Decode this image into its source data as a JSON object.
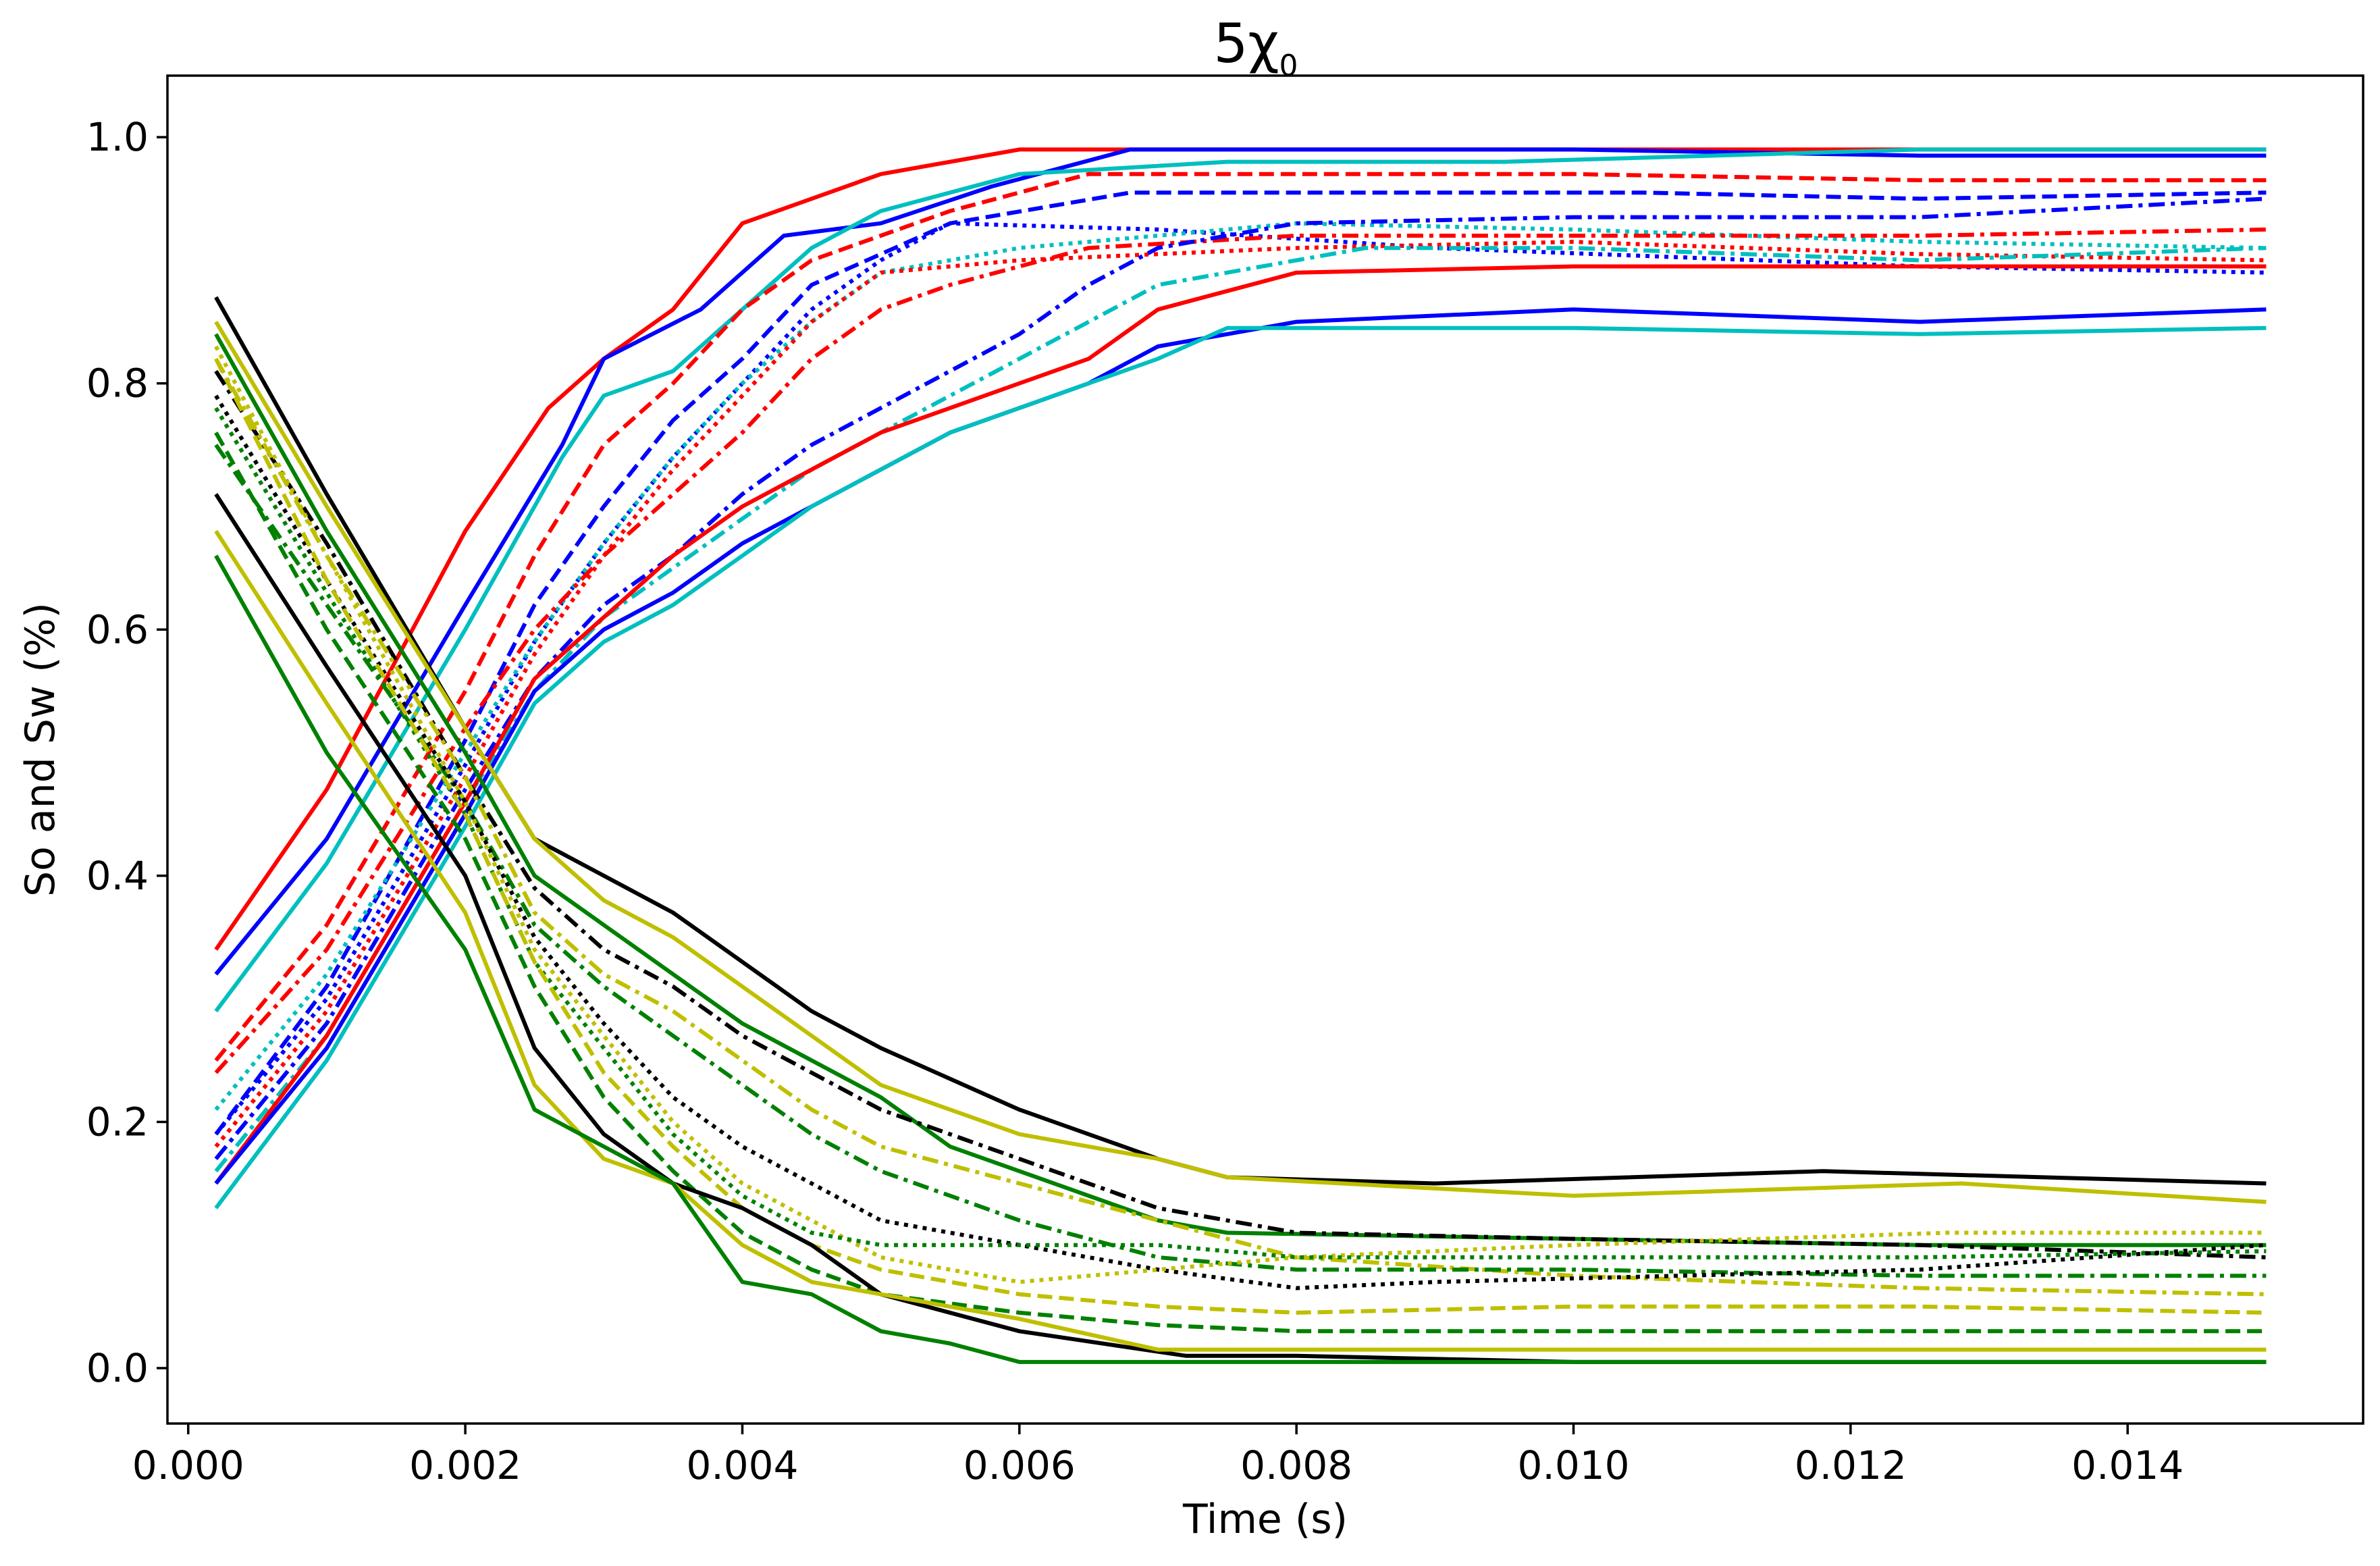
{
  "chart_data": {
    "type": "line",
    "title": "5χ",
    "title_subscript": "0",
    "xlabel": "Time (s)",
    "ylabel": "So and Sw (%)",
    "xlim": [
      -0.00015,
      0.0157
    ],
    "ylim": [
      -0.045,
      1.05
    ],
    "xticks": [
      0.0,
      0.002,
      0.004,
      0.006,
      0.008,
      0.01,
      0.012,
      0.014
    ],
    "xtick_labels": [
      "0.000",
      "0.002",
      "0.004",
      "0.006",
      "0.008",
      "0.010",
      "0.012",
      "0.014"
    ],
    "yticks": [
      0.0,
      0.2,
      0.4,
      0.6,
      0.8,
      1.0
    ],
    "ytick_labels": [
      "0.0",
      "0.2",
      "0.4",
      "0.6",
      "0.8",
      "1.0"
    ],
    "grid": false,
    "legend": "none",
    "series": [
      {
        "name": "So red solid 1",
        "group": "oil",
        "color": "#ff0000",
        "style": "solid",
        "x": [
          0.0002,
          0.001,
          0.002,
          0.0026,
          0.003,
          0.0035,
          0.004,
          0.0045,
          0.005,
          0.006,
          0.007,
          0.009,
          0.0125,
          0.015
        ],
        "y": [
          0.34,
          0.47,
          0.68,
          0.78,
          0.82,
          0.86,
          0.93,
          0.95,
          0.97,
          0.99,
          0.99,
          0.99,
          0.99,
          0.99
        ]
      },
      {
        "name": "So blue solid 1",
        "group": "oil",
        "color": "#0000ff",
        "style": "solid",
        "x": [
          0.0002,
          0.001,
          0.002,
          0.0027,
          0.003,
          0.0037,
          0.0043,
          0.005,
          0.0058,
          0.0068,
          0.008,
          0.01,
          0.0125,
          0.015
        ],
        "y": [
          0.32,
          0.43,
          0.62,
          0.75,
          0.82,
          0.86,
          0.92,
          0.93,
          0.96,
          0.99,
          0.99,
          0.99,
          0.985,
          0.985
        ]
      },
      {
        "name": "So cyan solid 1",
        "group": "oil",
        "color": "#00bfbf",
        "style": "solid",
        "x": [
          0.0002,
          0.001,
          0.002,
          0.0027,
          0.003,
          0.0035,
          0.004,
          0.0045,
          0.005,
          0.006,
          0.0075,
          0.0095,
          0.0125,
          0.015
        ],
        "y": [
          0.29,
          0.41,
          0.6,
          0.74,
          0.79,
          0.81,
          0.86,
          0.91,
          0.94,
          0.97,
          0.98,
          0.98,
          0.99,
          0.99
        ]
      },
      {
        "name": "So red dashed",
        "group": "oil",
        "color": "#ff0000",
        "style": "dashed",
        "x": [
          0.0002,
          0.001,
          0.002,
          0.0025,
          0.003,
          0.0035,
          0.004,
          0.0045,
          0.0055,
          0.0065,
          0.008,
          0.01,
          0.0125,
          0.015
        ],
        "y": [
          0.25,
          0.36,
          0.55,
          0.66,
          0.75,
          0.8,
          0.86,
          0.9,
          0.94,
          0.97,
          0.97,
          0.97,
          0.965,
          0.965
        ]
      },
      {
        "name": "So blue dashed",
        "group": "oil",
        "color": "#0000ff",
        "style": "dashed",
        "x": [
          0.0002,
          0.001,
          0.002,
          0.0025,
          0.003,
          0.0035,
          0.004,
          0.0045,
          0.0055,
          0.0068,
          0.0085,
          0.0105,
          0.0125,
          0.015
        ],
        "y": [
          0.19,
          0.31,
          0.51,
          0.62,
          0.7,
          0.77,
          0.82,
          0.88,
          0.93,
          0.955,
          0.955,
          0.955,
          0.95,
          0.955
        ]
      },
      {
        "name": "So blue dotted",
        "group": "oil",
        "color": "#0000ff",
        "style": "dotted",
        "x": [
          0.0002,
          0.001,
          0.002,
          0.0025,
          0.003,
          0.0035,
          0.004,
          0.0045,
          0.005,
          0.0055,
          0.007,
          0.009,
          0.0125,
          0.015
        ],
        "y": [
          0.19,
          0.3,
          0.49,
          0.59,
          0.67,
          0.74,
          0.8,
          0.86,
          0.9,
          0.93,
          0.925,
          0.91,
          0.895,
          0.89
        ]
      },
      {
        "name": "So cyan dotted",
        "group": "oil",
        "color": "#00bfbf",
        "style": "dotted",
        "x": [
          0.0002,
          0.001,
          0.002,
          0.0025,
          0.003,
          0.0035,
          0.004,
          0.0045,
          0.005,
          0.006,
          0.008,
          0.01,
          0.0125,
          0.015
        ],
        "y": [
          0.21,
          0.32,
          0.5,
          0.59,
          0.67,
          0.74,
          0.8,
          0.85,
          0.89,
          0.91,
          0.93,
          0.925,
          0.915,
          0.91
        ]
      },
      {
        "name": "So red dotted",
        "group": "oil",
        "color": "#ff0000",
        "style": "dotted",
        "x": [
          0.0002,
          0.001,
          0.002,
          0.0025,
          0.003,
          0.0035,
          0.004,
          0.0045,
          0.005,
          0.006,
          0.008,
          0.01,
          0.0125,
          0.015
        ],
        "y": [
          0.18,
          0.29,
          0.48,
          0.58,
          0.66,
          0.73,
          0.79,
          0.85,
          0.89,
          0.9,
          0.91,
          0.915,
          0.905,
          0.9
        ]
      },
      {
        "name": "So red dashdot",
        "group": "oil",
        "color": "#ff0000",
        "style": "dashdot",
        "x": [
          0.0002,
          0.001,
          0.002,
          0.0025,
          0.003,
          0.0035,
          0.004,
          0.0045,
          0.005,
          0.0055,
          0.0065,
          0.008,
          0.01,
          0.0125,
          0.015
        ],
        "y": [
          0.24,
          0.34,
          0.52,
          0.6,
          0.66,
          0.71,
          0.76,
          0.82,
          0.86,
          0.88,
          0.91,
          0.92,
          0.92,
          0.92,
          0.925
        ]
      },
      {
        "name": "So blue dashdot",
        "group": "oil",
        "color": "#0000ff",
        "style": "dashdot",
        "x": [
          0.0002,
          0.001,
          0.002,
          0.0025,
          0.003,
          0.0035,
          0.004,
          0.0045,
          0.005,
          0.0055,
          0.006,
          0.0065,
          0.007,
          0.008,
          0.01,
          0.0125,
          0.015
        ],
        "y": [
          0.17,
          0.28,
          0.47,
          0.56,
          0.62,
          0.66,
          0.71,
          0.75,
          0.78,
          0.81,
          0.84,
          0.88,
          0.91,
          0.93,
          0.935,
          0.935,
          0.95
        ]
      },
      {
        "name": "So cyan dashdot",
        "group": "oil",
        "color": "#00bfbf",
        "style": "dashdot",
        "x": [
          0.0002,
          0.001,
          0.002,
          0.0025,
          0.003,
          0.0035,
          0.004,
          0.0045,
          0.005,
          0.0055,
          0.006,
          0.0065,
          0.007,
          0.0085,
          0.01,
          0.0125,
          0.015
        ],
        "y": [
          0.16,
          0.27,
          0.46,
          0.55,
          0.61,
          0.65,
          0.69,
          0.73,
          0.76,
          0.79,
          0.82,
          0.85,
          0.88,
          0.91,
          0.91,
          0.9,
          0.91
        ]
      },
      {
        "name": "So red solid 2",
        "group": "oil",
        "color": "#ff0000",
        "style": "solid",
        "x": [
          0.0002,
          0.001,
          0.002,
          0.0025,
          0.003,
          0.0035,
          0.004,
          0.0045,
          0.005,
          0.0055,
          0.006,
          0.0065,
          0.007,
          0.008,
          0.01,
          0.0125,
          0.015
        ],
        "y": [
          0.15,
          0.27,
          0.46,
          0.56,
          0.61,
          0.66,
          0.7,
          0.73,
          0.76,
          0.78,
          0.8,
          0.82,
          0.86,
          0.89,
          0.895,
          0.895,
          0.895
        ]
      },
      {
        "name": "So blue solid 2",
        "group": "oil",
        "color": "#0000ff",
        "style": "solid",
        "x": [
          0.0002,
          0.001,
          0.002,
          0.0025,
          0.003,
          0.0035,
          0.004,
          0.0045,
          0.005,
          0.0055,
          0.006,
          0.0065,
          0.007,
          0.008,
          0.01,
          0.0125,
          0.015
        ],
        "y": [
          0.15,
          0.26,
          0.45,
          0.55,
          0.6,
          0.63,
          0.67,
          0.7,
          0.73,
          0.76,
          0.78,
          0.8,
          0.83,
          0.85,
          0.86,
          0.85,
          0.86
        ]
      },
      {
        "name": "So cyan solid 2",
        "group": "oil",
        "color": "#00bfbf",
        "style": "solid",
        "x": [
          0.0002,
          0.001,
          0.002,
          0.0025,
          0.003,
          0.0035,
          0.004,
          0.0045,
          0.005,
          0.0055,
          0.006,
          0.0065,
          0.007,
          0.0075,
          0.01,
          0.0125,
          0.015
        ],
        "y": [
          0.13,
          0.25,
          0.44,
          0.54,
          0.59,
          0.62,
          0.66,
          0.7,
          0.73,
          0.76,
          0.78,
          0.8,
          0.82,
          0.845,
          0.845,
          0.84,
          0.845
        ]
      },
      {
        "name": "Sw black solid 1",
        "group": "water",
        "color": "#000000",
        "style": "solid",
        "x": [
          0.0002,
          0.001,
          0.002,
          0.0025,
          0.003,
          0.0035,
          0.004,
          0.0045,
          0.005,
          0.006,
          0.007,
          0.0075,
          0.009,
          0.0118,
          0.015
        ],
        "y": [
          0.87,
          0.71,
          0.52,
          0.43,
          0.4,
          0.37,
          0.33,
          0.29,
          0.26,
          0.21,
          0.17,
          0.155,
          0.15,
          0.16,
          0.15
        ]
      },
      {
        "name": "Sw olive solid 1",
        "group": "water",
        "color": "#bfbf00",
        "style": "solid",
        "x": [
          0.0002,
          0.001,
          0.002,
          0.0025,
          0.003,
          0.0035,
          0.004,
          0.0045,
          0.005,
          0.006,
          0.007,
          0.0075,
          0.01,
          0.0128,
          0.015
        ],
        "y": [
          0.85,
          0.7,
          0.52,
          0.43,
          0.38,
          0.35,
          0.31,
          0.27,
          0.23,
          0.19,
          0.17,
          0.155,
          0.14,
          0.15,
          0.135
        ]
      },
      {
        "name": "Sw green solid 1",
        "group": "water",
        "color": "#008000",
        "style": "solid",
        "x": [
          0.0002,
          0.001,
          0.002,
          0.0025,
          0.003,
          0.0035,
          0.004,
          0.0045,
          0.005,
          0.0055,
          0.006,
          0.007,
          0.0075,
          0.01,
          0.0125,
          0.015
        ],
        "y": [
          0.84,
          0.68,
          0.5,
          0.4,
          0.36,
          0.32,
          0.28,
          0.25,
          0.22,
          0.18,
          0.16,
          0.12,
          0.11,
          0.105,
          0.1,
          0.1
        ]
      },
      {
        "name": "Sw black dashdot",
        "group": "water",
        "color": "#000000",
        "style": "dashdot",
        "x": [
          0.0002,
          0.001,
          0.002,
          0.0025,
          0.003,
          0.0035,
          0.004,
          0.0045,
          0.005,
          0.006,
          0.007,
          0.008,
          0.01,
          0.0125,
          0.015
        ],
        "y": [
          0.81,
          0.67,
          0.48,
          0.39,
          0.34,
          0.31,
          0.27,
          0.24,
          0.21,
          0.17,
          0.13,
          0.11,
          0.105,
          0.1,
          0.09
        ]
      },
      {
        "name": "Sw olive dashdot",
        "group": "water",
        "color": "#bfbf00",
        "style": "dashdot",
        "x": [
          0.0002,
          0.001,
          0.002,
          0.0025,
          0.003,
          0.0035,
          0.004,
          0.0045,
          0.005,
          0.006,
          0.007,
          0.008,
          0.01,
          0.0125,
          0.015
        ],
        "y": [
          0.82,
          0.66,
          0.48,
          0.37,
          0.32,
          0.29,
          0.25,
          0.21,
          0.18,
          0.15,
          0.12,
          0.09,
          0.075,
          0.065,
          0.06
        ]
      },
      {
        "name": "Sw green dashdot",
        "group": "water",
        "color": "#008000",
        "style": "dashdot",
        "x": [
          0.0002,
          0.001,
          0.002,
          0.0025,
          0.003,
          0.0035,
          0.004,
          0.0045,
          0.005,
          0.006,
          0.007,
          0.008,
          0.01,
          0.0125,
          0.015
        ],
        "y": [
          0.75,
          0.62,
          0.46,
          0.36,
          0.31,
          0.27,
          0.23,
          0.19,
          0.16,
          0.12,
          0.09,
          0.08,
          0.08,
          0.075,
          0.075
        ]
      },
      {
        "name": "Sw black dotted",
        "group": "water",
        "color": "#000000",
        "style": "dotted",
        "x": [
          0.0002,
          0.001,
          0.002,
          0.0025,
          0.003,
          0.0035,
          0.004,
          0.0045,
          0.005,
          0.006,
          0.007,
          0.008,
          0.009,
          0.0125,
          0.015
        ],
        "y": [
          0.79,
          0.64,
          0.46,
          0.35,
          0.28,
          0.22,
          0.18,
          0.15,
          0.12,
          0.1,
          0.08,
          0.065,
          0.07,
          0.08,
          0.1
        ]
      },
      {
        "name": "Sw olive dotted",
        "group": "water",
        "color": "#bfbf00",
        "style": "dotted",
        "x": [
          0.0002,
          0.001,
          0.002,
          0.0025,
          0.003,
          0.0035,
          0.004,
          0.0045,
          0.005,
          0.006,
          0.008,
          0.01,
          0.0127,
          0.015
        ],
        "y": [
          0.83,
          0.66,
          0.46,
          0.34,
          0.27,
          0.2,
          0.15,
          0.12,
          0.09,
          0.07,
          0.09,
          0.1,
          0.11,
          0.11
        ]
      },
      {
        "name": "Sw green dotted",
        "group": "water",
        "color": "#008000",
        "style": "dotted",
        "x": [
          0.0002,
          0.001,
          0.002,
          0.0025,
          0.003,
          0.0035,
          0.004,
          0.0045,
          0.005,
          0.006,
          0.007,
          0.008,
          0.01,
          0.0125,
          0.015
        ],
        "y": [
          0.78,
          0.63,
          0.45,
          0.33,
          0.26,
          0.19,
          0.14,
          0.11,
          0.1,
          0.1,
          0.1,
          0.09,
          0.09,
          0.09,
          0.095
        ]
      },
      {
        "name": "Sw olive dashed",
        "group": "water",
        "color": "#bfbf00",
        "style": "dashed",
        "x": [
          0.0002,
          0.001,
          0.002,
          0.0025,
          0.003,
          0.0035,
          0.004,
          0.0045,
          0.005,
          0.006,
          0.007,
          0.008,
          0.01,
          0.0125,
          0.015
        ],
        "y": [
          0.82,
          0.64,
          0.45,
          0.33,
          0.24,
          0.18,
          0.13,
          0.1,
          0.08,
          0.06,
          0.05,
          0.045,
          0.05,
          0.05,
          0.045
        ]
      },
      {
        "name": "Sw green dashed",
        "group": "water",
        "color": "#008000",
        "style": "dashed",
        "x": [
          0.0002,
          0.001,
          0.002,
          0.0025,
          0.003,
          0.0035,
          0.004,
          0.0045,
          0.005,
          0.006,
          0.007,
          0.008,
          0.01,
          0.0125,
          0.015
        ],
        "y": [
          0.76,
          0.6,
          0.43,
          0.31,
          0.22,
          0.16,
          0.11,
          0.08,
          0.06,
          0.045,
          0.035,
          0.03,
          0.03,
          0.03,
          0.03
        ]
      },
      {
        "name": "Sw black solid 2",
        "group": "water",
        "color": "#000000",
        "style": "solid",
        "x": [
          0.0002,
          0.001,
          0.002,
          0.0025,
          0.003,
          0.0035,
          0.004,
          0.0045,
          0.005,
          0.006,
          0.0072,
          0.008,
          0.01,
          0.0125,
          0.015
        ],
        "y": [
          0.71,
          0.57,
          0.4,
          0.26,
          0.19,
          0.15,
          0.13,
          0.1,
          0.06,
          0.03,
          0.01,
          0.01,
          0.005,
          0.005,
          0.005
        ]
      },
      {
        "name": "Sw olive solid 2",
        "group": "water",
        "color": "#bfbf00",
        "style": "solid",
        "x": [
          0.0002,
          0.001,
          0.002,
          0.0025,
          0.003,
          0.0035,
          0.004,
          0.0045,
          0.005,
          0.006,
          0.007,
          0.008,
          0.01,
          0.0125,
          0.015
        ],
        "y": [
          0.68,
          0.54,
          0.37,
          0.23,
          0.17,
          0.15,
          0.1,
          0.07,
          0.06,
          0.04,
          0.015,
          0.015,
          0.015,
          0.015,
          0.015
        ]
      },
      {
        "name": "Sw green solid 2",
        "group": "water",
        "color": "#008000",
        "style": "solid",
        "x": [
          0.0002,
          0.001,
          0.002,
          0.0025,
          0.003,
          0.0035,
          0.004,
          0.0045,
          0.005,
          0.0055,
          0.006,
          0.008,
          0.01,
          0.0125,
          0.015
        ],
        "y": [
          0.66,
          0.5,
          0.34,
          0.21,
          0.18,
          0.15,
          0.07,
          0.06,
          0.03,
          0.02,
          0.005,
          0.005,
          0.005,
          0.005,
          0.005
        ]
      }
    ]
  }
}
